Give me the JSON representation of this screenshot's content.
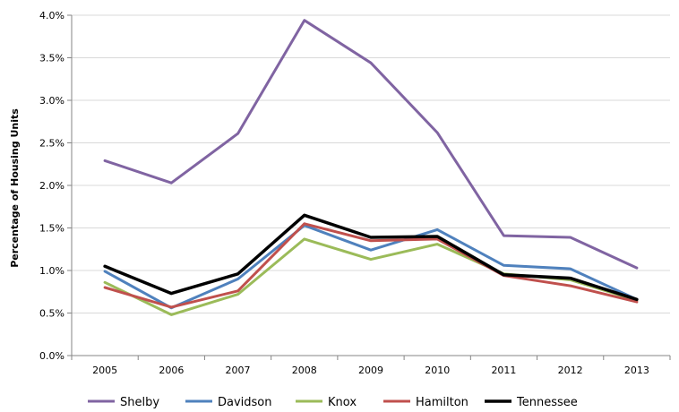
{
  "chart_data": {
    "type": "line",
    "title": "",
    "xlabel": "",
    "ylabel": "Percentage of Housing Units",
    "ylim": [
      0,
      4.0
    ],
    "y_ticks": [
      "0.0%",
      "0.5%",
      "1.0%",
      "1.5%",
      "2.0%",
      "2.5%",
      "3.0%",
      "3.5%",
      "4.0%"
    ],
    "grid": "horizontal",
    "legend_position": "bottom",
    "categories": [
      "2005",
      "2006",
      "2007",
      "2008",
      "2009",
      "2010",
      "2011",
      "2012",
      "2013"
    ],
    "series": [
      {
        "name": "Shelby",
        "color": "#8064A2",
        "values": [
          2.29,
          2.03,
          2.61,
          3.94,
          3.44,
          2.62,
          1.41,
          1.39,
          1.03
        ]
      },
      {
        "name": "Davidson",
        "color": "#4F81BD",
        "values": [
          0.99,
          0.56,
          0.9,
          1.53,
          1.24,
          1.48,
          1.06,
          1.02,
          0.66
        ]
      },
      {
        "name": "Knox",
        "color": "#9BBB59",
        "values": [
          0.86,
          0.48,
          0.72,
          1.37,
          1.13,
          1.31,
          0.96,
          0.89,
          0.65
        ]
      },
      {
        "name": "Hamilton",
        "color": "#C0504D",
        "values": [
          0.8,
          0.57,
          0.76,
          1.55,
          1.35,
          1.37,
          0.94,
          0.82,
          0.63
        ]
      },
      {
        "name": "Tennessee",
        "color": "#000000",
        "values": [
          1.05,
          0.73,
          0.96,
          1.65,
          1.39,
          1.4,
          0.95,
          0.91,
          0.66
        ]
      }
    ]
  }
}
